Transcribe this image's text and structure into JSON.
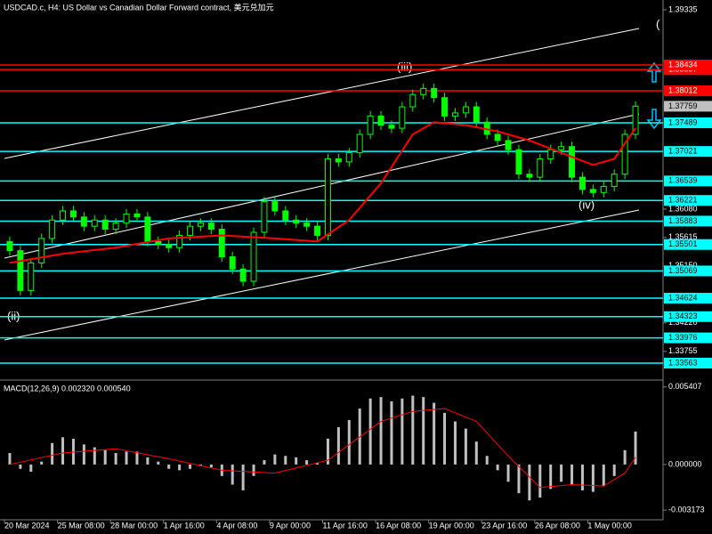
{
  "chart_data": {
    "type": "candlestick",
    "title": "USDCAD.c, H4:  US Dollar vs Canadian Dollar Forward contract, 美元兑加元",
    "xticks": [
      {
        "value": 0,
        "label": "20 Mar 2024"
      },
      {
        "value": 5,
        "label": "25 Mar 08:00"
      },
      {
        "value": 10,
        "label": "28 Mar 00:00"
      },
      {
        "value": 15,
        "label": "1 Apr 16:00"
      },
      {
        "value": 20,
        "label": "4 Apr 08:00"
      },
      {
        "value": 25,
        "label": "9 Apr 00:00"
      },
      {
        "value": 30,
        "label": "11 Apr 16:00"
      },
      {
        "value": 35,
        "label": "16 Apr 08:00"
      },
      {
        "value": 40,
        "label": "19 Apr 00:00"
      },
      {
        "value": 45,
        "label": "23 Apr 16:00"
      },
      {
        "value": 50,
        "label": "26 Apr 08:00"
      },
      {
        "value": 55,
        "label": "1 May 00:00"
      }
    ],
    "open": [
      1.3555,
      1.354,
      1.3475,
      1.352,
      1.356,
      1.359,
      1.3605,
      1.3595,
      1.358,
      1.359,
      1.3575,
      1.3585,
      1.36,
      1.3595,
      1.3555,
      1.355,
      1.3545,
      1.3565,
      1.358,
      1.3585,
      1.3575,
      1.353,
      1.351,
      1.349,
      1.357,
      1.362,
      1.3605,
      1.359,
      1.3585,
      1.358,
      1.3565,
      1.369,
      1.3685,
      1.37,
      1.373,
      1.376,
      1.3745,
      1.374,
      1.3775,
      1.3795,
      1.3805,
      1.379,
      1.376,
      1.3765,
      1.3775,
      1.375,
      1.373,
      1.372,
      1.3705,
      1.3665,
      1.366,
      1.369,
      1.3705,
      1.371,
      1.366,
      1.364,
      1.3635,
      1.3645,
      1.3665,
      1.373
    ],
    "high": [
      1.3563,
      1.3548,
      1.3528,
      1.3568,
      1.3598,
      1.3613,
      1.3613,
      1.3603,
      1.3598,
      1.3598,
      1.3593,
      1.3608,
      1.3608,
      1.3603,
      1.3563,
      1.3558,
      1.3573,
      1.3588,
      1.3593,
      1.3593,
      1.3583,
      1.3538,
      1.3518,
      1.3578,
      1.3628,
      1.3628,
      1.3613,
      1.3598,
      1.3593,
      1.3588,
      1.3698,
      1.3698,
      1.3708,
      1.3738,
      1.3768,
      1.3768,
      1.3753,
      1.3783,
      1.3803,
      1.3813,
      1.3813,
      1.3798,
      1.3773,
      1.3783,
      1.3783,
      1.3758,
      1.3738,
      1.3728,
      1.3713,
      1.3673,
      1.3698,
      1.3713,
      1.3718,
      1.3718,
      1.3668,
      1.3648,
      1.3653,
      1.3673,
      1.3738,
      1.3784
    ],
    "low": [
      1.3532,
      1.3467,
      1.3467,
      1.3512,
      1.3552,
      1.3582,
      1.3587,
      1.3572,
      1.3572,
      1.3567,
      1.3567,
      1.3577,
      1.3587,
      1.3547,
      1.3542,
      1.3537,
      1.3537,
      1.3557,
      1.3572,
      1.3567,
      1.3522,
      1.3502,
      1.3482,
      1.3482,
      1.3562,
      1.3597,
      1.3582,
      1.3577,
      1.3572,
      1.3557,
      1.3557,
      1.3677,
      1.3677,
      1.3692,
      1.3722,
      1.3737,
      1.3732,
      1.3732,
      1.3767,
      1.3787,
      1.3782,
      1.3752,
      1.3752,
      1.3757,
      1.3742,
      1.3722,
      1.3712,
      1.3697,
      1.3657,
      1.3652,
      1.3652,
      1.3682,
      1.3697,
      1.3652,
      1.3632,
      1.3627,
      1.3627,
      1.3637,
      1.3657,
      1.3722
    ],
    "close": [
      1.354,
      1.3475,
      1.352,
      1.356,
      1.359,
      1.3605,
      1.3595,
      1.358,
      1.359,
      1.3575,
      1.3585,
      1.36,
      1.3595,
      1.3555,
      1.355,
      1.3545,
      1.3565,
      1.358,
      1.3585,
      1.3575,
      1.353,
      1.351,
      1.349,
      1.357,
      1.362,
      1.3605,
      1.359,
      1.3585,
      1.358,
      1.3565,
      1.369,
      1.3685,
      1.37,
      1.373,
      1.376,
      1.3745,
      1.374,
      1.3775,
      1.3795,
      1.3805,
      1.379,
      1.376,
      1.3765,
      1.3775,
      1.375,
      1.373,
      1.372,
      1.3705,
      1.3665,
      1.366,
      1.369,
      1.3705,
      1.371,
      1.366,
      1.364,
      1.3635,
      1.3645,
      1.3665,
      1.373,
      1.3776
    ],
    "candle_color": "#00ff00",
    "ma": {
      "color": "#ff0000",
      "x": [
        0,
        5,
        10,
        15,
        20,
        25,
        29,
        32,
        35,
        38,
        40,
        43,
        46,
        49,
        52,
        55,
        57,
        59
      ],
      "values": [
        1.352,
        1.3535,
        1.3545,
        1.356,
        1.3565,
        1.356,
        1.3555,
        1.359,
        1.365,
        1.373,
        1.375,
        1.3745,
        1.3735,
        1.372,
        1.37,
        1.368,
        1.369,
        1.374
      ]
    },
    "ylim": [
      1.33316,
      1.39495
    ],
    "yticks": [
      1.39335,
      {
        "value": 1.3608,
        "label": "1.36080"
      },
      1.35615,
      {
        "value": 1.3515,
        "label": "1.35150"
      },
      {
        "value": 1.3422,
        "label": "1.34220"
      },
      1.33755
    ],
    "levels": [
      {
        "value": 1.38357,
        "color": "#ff0000"
      },
      {
        "value": 1.38434,
        "color": "#ff0000"
      },
      {
        "value": 1.38012,
        "color": "#ff0000"
      },
      {
        "value": 1.37489,
        "color": "#00ffff"
      },
      {
        "value": 1.37021,
        "color": "#00ffff"
      },
      {
        "value": 1.36539,
        "color": "#00ffff"
      },
      {
        "value": 1.36221,
        "color": "#00ffff"
      },
      {
        "value": 1.35883,
        "color": "#00ffff"
      },
      {
        "value": 1.35501,
        "color": "#00ffff"
      },
      {
        "value": 1.35069,
        "color": "#00ffff"
      },
      {
        "value": 1.34624,
        "color": "#00ffff"
      },
      {
        "value": 1.34323,
        "color": "#00ffff"
      },
      {
        "value": 1.33976,
        "color": "#00ffff"
      },
      {
        "value": 1.33563,
        "color": "#00ffff"
      }
    ],
    "last_price": 1.37759,
    "annotations": [
      "(iii)",
      "(ii)",
      "(iv)",
      "("
    ],
    "macd": {
      "label": "MACD(12,26,9) 0.002320 0.000540",
      "color": "#c0c0c0",
      "values": [
        0.0008,
        -0.0003,
        -0.0005,
        0.0002,
        0.0015,
        0.0019,
        0.0018,
        0.0014,
        0.0012,
        0.001,
        0.0008,
        0.0009,
        0.0009,
        0.0005,
        0.0002,
        -0.0003,
        -0.0004,
        -0.0003,
        -0.0001,
        -0.0002,
        -0.0008,
        -0.0014,
        -0.0018,
        -0.0008,
        0.0003,
        0.0007,
        0.0006,
        0.0005,
        0.0003,
        0.0001,
        0.0018,
        0.0026,
        0.0031,
        0.0039,
        0.0046,
        0.0047,
        0.0044,
        0.0046,
        0.0048,
        0.0047,
        0.0043,
        0.0036,
        0.003,
        0.0025,
        0.0016,
        0.0006,
        -0.0004,
        -0.0012,
        -0.002,
        -0.0025,
        -0.0023,
        -0.0017,
        -0.0012,
        -0.0014,
        -0.0018,
        -0.0019,
        -0.0015,
        -0.0008,
        0.001,
        0.0023
      ],
      "signal": {
        "color": "#ff0000",
        "x": [
          0,
          5,
          10,
          15,
          20,
          25,
          30,
          35,
          38,
          41,
          44,
          47,
          50,
          53,
          56,
          58,
          59
        ],
        "values": [
          0,
          0.0008,
          0.0011,
          0.0004,
          -0.0004,
          -0.0006,
          0.0003,
          0.003,
          0.0037,
          0.0039,
          0.003,
          0.0006,
          -0.0016,
          -0.0014,
          -0.0015,
          -0.0006,
          0.0005
        ]
      },
      "ylim": [
        -0.0036,
        0.0057
      ],
      "yticks": [
        {
          "value": 0.005407,
          "label": "0.005407"
        },
        {
          "value": 0,
          "label": "0.000000"
        },
        {
          "value": -0.003173,
          "label": "-0.003173"
        }
      ]
    }
  }
}
